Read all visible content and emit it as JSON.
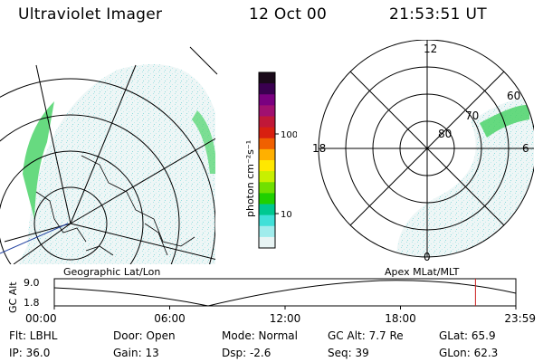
{
  "header": {
    "instrument": "Ultraviolet Imager",
    "date": "12 Oct 00",
    "time": "21:53:51 UT"
  },
  "colorbar": {
    "unit_label": "photon cm⁻²s⁻¹",
    "ticks": [
      "100",
      "10"
    ],
    "colors": [
      "#1a0a1a",
      "#3a0050",
      "#7a0080",
      "#a01070",
      "#c01838",
      "#d82010",
      "#f06000",
      "#ffb000",
      "#ffe800",
      "#c8f000",
      "#70e000",
      "#20d000",
      "#00c890",
      "#40e0d8",
      "#a0ecec",
      "#e8f4f4"
    ]
  },
  "left_map": {
    "label": "Geographic Lat/Lon"
  },
  "right_map": {
    "label": "Apex MLat/MLT",
    "mlt_labels": {
      "top": "12",
      "left": "18",
      "right": "6",
      "bottom": "0"
    },
    "lat_labels": [
      "60",
      "70",
      "80"
    ]
  },
  "timeline": {
    "y_label": "GC Alt",
    "y_ticks": [
      "9.0",
      "1.8"
    ],
    "x_ticks": [
      "00:00",
      "06:00",
      "12:00",
      "18:00",
      "23:59"
    ],
    "marker_time_hours": 21.9,
    "marker_color": "#cc2020"
  },
  "status": {
    "flt": "Flt: LBHL",
    "ip": "IP: 36.0",
    "door": "Door: Open",
    "gain": "Gain: 13",
    "mode": "Mode: Normal",
    "dsp": "Dsp:    -2.6",
    "gc_alt": "GC Alt: 7.7 Re",
    "seq": "Seq: 39",
    "glat": "GLat:   65.9",
    "glon": "GLon:   62.3"
  }
}
